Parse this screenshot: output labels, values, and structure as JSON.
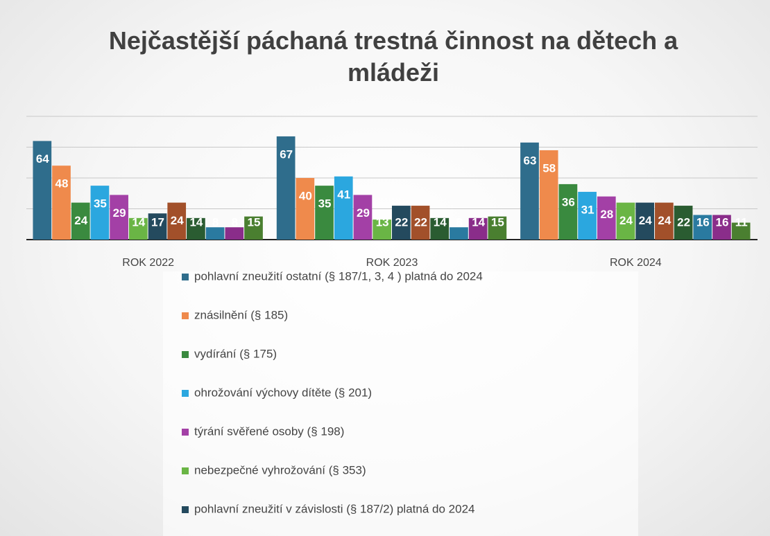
{
  "chart_data": {
    "type": "bar",
    "title": "Nejčastější páchaná trestná činnost na dětech a  mládeži",
    "categories": [
      "ROK 2022",
      "ROK 2023",
      "ROK 2024"
    ],
    "ylim": [
      0,
      80
    ],
    "yticks": [
      0,
      20,
      40,
      60,
      80
    ],
    "grid": true,
    "series": [
      {
        "name": "pohlavní zneužití ostatní (§ 187/1, 3, 4 ) platná do 2024",
        "color": "#2f6d8c",
        "values": [
          64,
          67,
          63
        ]
      },
      {
        "name": "znásilnění (§ 185)",
        "color": "#ef8a4c",
        "values": [
          48,
          40,
          58
        ]
      },
      {
        "name": "vydírání (§ 175)",
        "color": "#3a8a3f",
        "values": [
          24,
          35,
          36
        ]
      },
      {
        "name": "ohrožování výchovy dítěte (§ 201)",
        "color": "#2ba7df",
        "values": [
          35,
          41,
          31
        ]
      },
      {
        "name": "týrání svěřené osoby (§ 198)",
        "color": "#a340a6",
        "values": [
          29,
          29,
          28
        ]
      },
      {
        "name": "nebezpečné vyhrožování (§ 353)",
        "color": "#6ab545",
        "values": [
          14,
          13,
          24
        ]
      },
      {
        "name": "pohlavní zneužití v závislosti (§ 187/2) platná do 2024",
        "color": "#244a5e",
        "values": [
          17,
          22,
          24
        ]
      },
      {
        "color": "#a2502a",
        "values": [
          24,
          22,
          24
        ]
      },
      {
        "color": "#2a5c31",
        "values": [
          14,
          14,
          22
        ]
      },
      {
        "color": "#2a7aa0",
        "values": [
          8,
          8,
          16
        ]
      },
      {
        "color": "#8a2d8a",
        "values": [
          8,
          14,
          16
        ]
      },
      {
        "color": "#4a7f30",
        "values": [
          15,
          15,
          11
        ]
      }
    ]
  }
}
